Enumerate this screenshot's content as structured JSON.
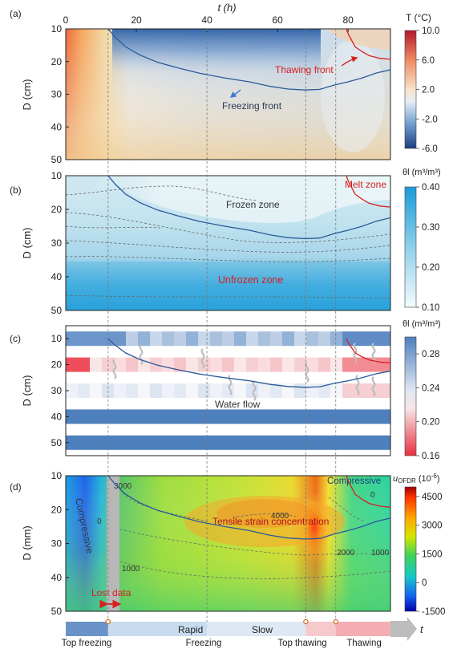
{
  "colors": {
    "freeze_front": "#2a5a9a",
    "thaw_front": "#d62020",
    "grid_line": "#777777",
    "text_red": "#d81e1e",
    "text_dark": "#222222",
    "phase_freeze": "#6a93c8",
    "phase_rapid": "#c9dbee",
    "phase_slow": "#dde8f3",
    "phase_topthaw": "#f6c9cc",
    "phase_thaw": "#f4aeb3",
    "arrow_gray": "#bdbdbd"
  },
  "chart_data": [
    {
      "panel_label": "(a)",
      "type": "heatmap",
      "xlabel": "t (h)",
      "ylabel": "D (cm)",
      "xlim": [
        0,
        92
      ],
      "ylim": [
        10,
        50
      ],
      "x_ticks": [
        "0",
        "20",
        "40",
        "60",
        "80"
      ],
      "y_ticks": [
        "10",
        "20",
        "30",
        "40",
        "50"
      ],
      "colorbar_title": "T (°C)",
      "colorbar_ticks": [
        "10.0",
        "6.0",
        "2.0",
        "-2.0",
        "-6.0"
      ],
      "colorbar_range": [
        -6,
        10
      ],
      "annotations": [
        "Thawing front",
        "Freezing front"
      ]
    },
    {
      "panel_label": "(b)",
      "type": "heatmap",
      "ylabel": "D (cm)",
      "ylim": [
        10,
        50
      ],
      "y_ticks": [
        "10",
        "20",
        "30",
        "40",
        "50"
      ],
      "colorbar_title": "θl (m³/m³)",
      "colorbar_ticks": [
        "0.40",
        "0.30",
        "0.20",
        "0.10"
      ],
      "colorbar_range": [
        0.1,
        0.4
      ],
      "annotations": [
        "Melt zone",
        "Frozen zone",
        "Unfrozen zone"
      ]
    },
    {
      "panel_label": "(c)",
      "type": "heatmap",
      "ylabel": "D (cm)",
      "ylim": [
        5,
        55
      ],
      "y_ticks": [
        "10",
        "20",
        "30",
        "40",
        "50"
      ],
      "colorbar_title": "θl (m³/m³)",
      "colorbar_ticks": [
        "0.28",
        "0.24",
        "0.20",
        "0.16"
      ],
      "colorbar_range": [
        0.16,
        0.3
      ],
      "sensor_depths": [
        10,
        20,
        30,
        40,
        50
      ],
      "annotations": [
        "Water flow"
      ]
    },
    {
      "panel_label": "(d)",
      "type": "heatmap",
      "ylabel": "D (mm)",
      "ylim": [
        10,
        50
      ],
      "y_ticks": [
        "10",
        "20",
        "30",
        "40",
        "50"
      ],
      "colorbar_title": "uOFDR (10-6)",
      "colorbar_ticks": [
        "4500",
        "3000",
        "1500",
        "0",
        "-1500"
      ],
      "colorbar_range": [
        -1500,
        5000
      ],
      "contour_labels": [
        "3000",
        "0",
        "1000",
        "4000",
        "2000",
        "1000",
        "0"
      ],
      "annotations": [
        "Compressive",
        "Compressive",
        "Tensile strain concentration",
        "Lost data"
      ]
    }
  ],
  "fronts": {
    "freezing_front": {
      "t": [
        12,
        14,
        17,
        21,
        26,
        32,
        38,
        45,
        52,
        58,
        63,
        68,
        72,
        76,
        80,
        84,
        88,
        92
      ],
      "D": [
        10,
        12.5,
        15.5,
        18,
        20.2,
        22,
        23.6,
        25,
        26.2,
        27.6,
        28.4,
        28.7,
        28.5,
        27.2,
        26.2,
        25,
        23.5,
        22.5
      ]
    },
    "thawing_front": {
      "t": [
        79.5,
        80,
        81,
        82,
        84,
        86,
        89,
        92
      ],
      "D": [
        10,
        11.5,
        13.5,
        15.5,
        17,
        18.2,
        19,
        19.3
      ]
    }
  },
  "event_times": [
    12,
    40,
    68,
    76.5
  ],
  "timeline": {
    "phases": [
      "Rapid",
      "Slow"
    ],
    "events": [
      "Top freezing",
      "Freezing",
      "Top thawing",
      "Thawing"
    ],
    "axis_label": "t"
  }
}
